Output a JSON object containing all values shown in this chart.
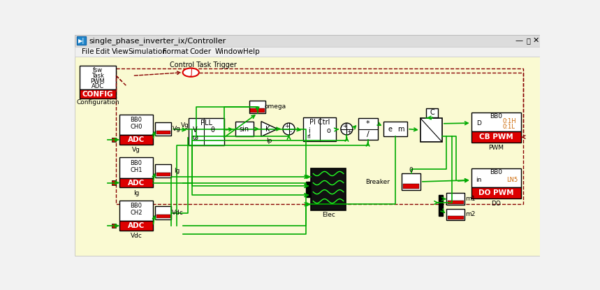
{
  "title": "single_phase_inverter_ix/Controller",
  "bg_color": "#FAFAD2",
  "window_bg": "#F2F2F2",
  "red": "#DD0000",
  "green": "#007700",
  "green_bright": "#00AA00",
  "black": "#000000",
  "white": "#FFFFFF",
  "orange": "#CC6600",
  "dkred": "#880000",
  "blue_title": "#0066CC",
  "titlebar_bg": "#F0F0F0",
  "menubar_bg": "#F5F5F5",
  "menu_items": [
    "File",
    "Edit",
    "View",
    "Simulation",
    "Format",
    "Coder",
    "Window",
    "Help"
  ],
  "menu_x": [
    12,
    38,
    68,
    98,
    162,
    212,
    258,
    310
  ]
}
